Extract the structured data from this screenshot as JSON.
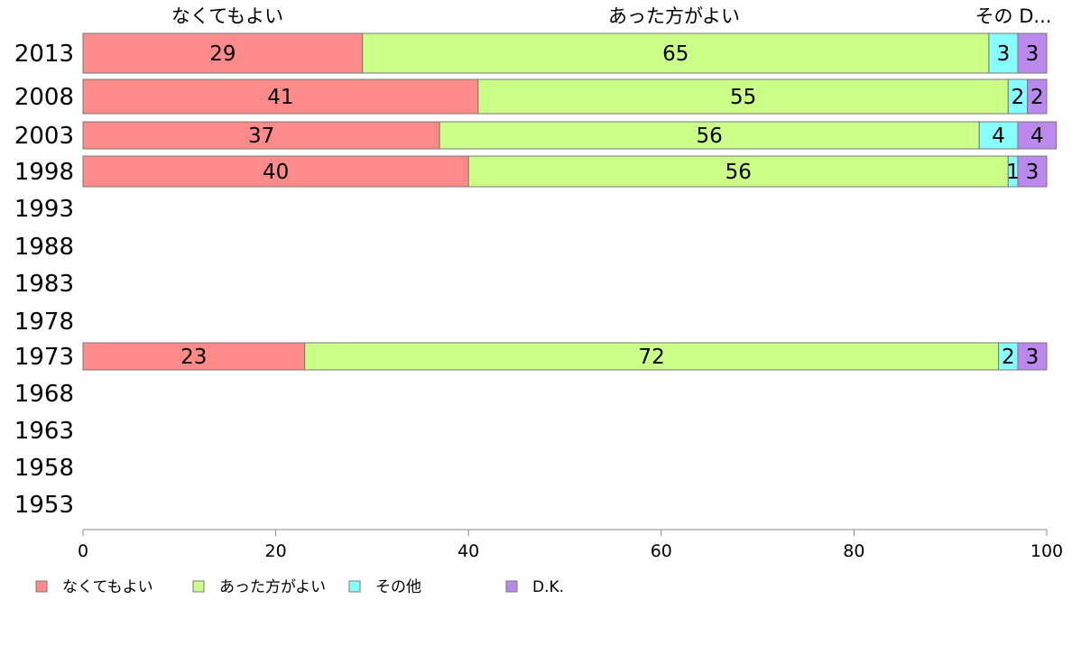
{
  "chart_data": {
    "type": "bar",
    "orientation": "horizontal",
    "stacked": true,
    "categories": [
      "2013",
      "2008",
      "2003",
      "1998",
      "1993",
      "1988",
      "1983",
      "1978",
      "1973",
      "1968",
      "1963",
      "1958",
      "1953"
    ],
    "series": [
      {
        "name": "なくてもよい",
        "color": "#ff8a8a",
        "values": [
          29,
          41,
          37,
          40,
          null,
          null,
          null,
          null,
          23,
          null,
          null,
          null,
          null
        ]
      },
      {
        "name": "あった方がよい",
        "color": "#ccff88",
        "values": [
          65,
          55,
          56,
          56,
          null,
          null,
          null,
          null,
          72,
          null,
          null,
          null,
          null
        ]
      },
      {
        "name": "その他",
        "color": "#88ffff",
        "values": [
          3,
          2,
          4,
          1,
          null,
          null,
          null,
          null,
          2,
          null,
          null,
          null,
          null
        ]
      },
      {
        "name": "D.K.",
        "color": "#bb88ee",
        "values": [
          3,
          2,
          4,
          3,
          null,
          null,
          null,
          null,
          3,
          null,
          null,
          null,
          null
        ]
      }
    ],
    "top_labels": [
      "なくてもよい",
      "あった方がよい",
      "その D..."
    ],
    "xlim": [
      0,
      100
    ],
    "xticks": [
      0,
      20,
      40,
      60,
      80,
      100
    ],
    "xlabel": "",
    "ylabel": "",
    "grid": false,
    "legend_position": "bottom-left"
  }
}
